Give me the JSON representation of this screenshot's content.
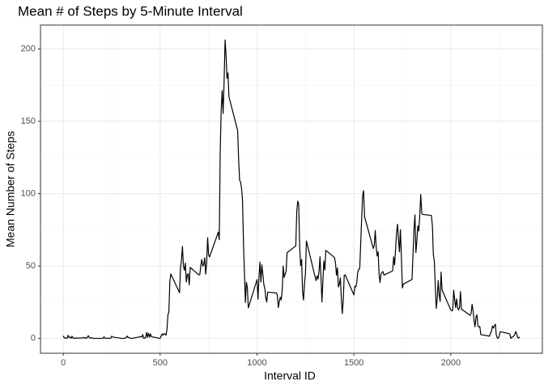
{
  "chart_data": {
    "type": "line",
    "title": "Mean # of Steps by 5-Minute Interval",
    "x_label": "Interval ID",
    "y_label": "Mean Number of Steps",
    "color": "#000000",
    "grid": true,
    "xlim": [
      -117.75,
      2472.75
    ],
    "ylim": [
      -10.3,
      216.5
    ],
    "xticks": [
      0,
      500,
      1000,
      1500,
      2000
    ],
    "yticks": [
      0,
      50,
      100,
      150,
      200
    ],
    "xminor_ticks": [
      250,
      750,
      1250,
      1750,
      2250
    ],
    "yminor_ticks": [
      25,
      75,
      125,
      175
    ],
    "x": [
      0,
      5,
      10,
      15,
      20,
      25,
      30,
      35,
      40,
      45,
      50,
      55,
      100,
      105,
      110,
      115,
      120,
      125,
      130,
      135,
      140,
      145,
      150,
      155,
      200,
      205,
      210,
      215,
      220,
      225,
      230,
      235,
      240,
      245,
      250,
      255,
      300,
      305,
      310,
      315,
      320,
      325,
      330,
      335,
      340,
      345,
      350,
      355,
      400,
      405,
      410,
      415,
      420,
      425,
      430,
      435,
      440,
      445,
      450,
      455,
      500,
      505,
      510,
      515,
      520,
      525,
      530,
      535,
      540,
      545,
      550,
      555,
      600,
      605,
      610,
      615,
      620,
      625,
      630,
      635,
      640,
      645,
      650,
      655,
      700,
      705,
      710,
      715,
      720,
      725,
      730,
      735,
      740,
      745,
      750,
      755,
      800,
      805,
      810,
      815,
      820,
      825,
      830,
      835,
      840,
      845,
      850,
      855,
      900,
      905,
      910,
      915,
      920,
      925,
      930,
      935,
      940,
      945,
      950,
      955,
      1000,
      1005,
      1010,
      1015,
      1020,
      1025,
      1030,
      1035,
      1040,
      1045,
      1050,
      1055,
      1100,
      1105,
      1110,
      1115,
      1120,
      1125,
      1130,
      1135,
      1140,
      1145,
      1150,
      1155,
      1200,
      1205,
      1210,
      1215,
      1220,
      1225,
      1230,
      1235,
      1240,
      1245,
      1250,
      1255,
      1300,
      1305,
      1310,
      1315,
      1320,
      1325,
      1330,
      1335,
      1340,
      1345,
      1350,
      1355,
      1400,
      1405,
      1410,
      1415,
      1420,
      1425,
      1430,
      1435,
      1440,
      1445,
      1450,
      1455,
      1500,
      1505,
      1510,
      1515,
      1520,
      1525,
      1530,
      1535,
      1540,
      1545,
      1550,
      1555,
      1600,
      1605,
      1610,
      1615,
      1620,
      1625,
      1630,
      1635,
      1640,
      1645,
      1650,
      1655,
      1700,
      1705,
      1710,
      1715,
      1720,
      1725,
      1730,
      1735,
      1740,
      1745,
      1750,
      1755,
      1800,
      1805,
      1810,
      1815,
      1820,
      1825,
      1830,
      1835,
      1840,
      1845,
      1850,
      1855,
      1900,
      1905,
      1910,
      1915,
      1920,
      1925,
      1930,
      1935,
      1940,
      1945,
      1950,
      1955,
      2000,
      2005,
      2010,
      2015,
      2020,
      2025,
      2030,
      2035,
      2040,
      2045,
      2050,
      2055,
      2100,
      2105,
      2110,
      2115,
      2120,
      2125,
      2130,
      2135,
      2140,
      2145,
      2150,
      2155,
      2200,
      2205,
      2210,
      2215,
      2220,
      2225,
      2230,
      2235,
      2240,
      2245,
      2250,
      2255,
      2300,
      2305,
      2310,
      2315,
      2320,
      2325,
      2330,
      2335,
      2340,
      2345,
      2350,
      2355
    ],
    "values": [
      1.7,
      0.3,
      0.1,
      0.2,
      0.1,
      2.1,
      0.5,
      0.9,
      0,
      1.5,
      0.3,
      0.1,
      0.3,
      0.7,
      0.2,
      0.3,
      0,
      1.1,
      1.8,
      0.2,
      0.2,
      0.4,
      0.3,
      0,
      0,
      0,
      1.1,
      0,
      0,
      0.1,
      0,
      0.2,
      0,
      0,
      1.5,
      0.9,
      0,
      0,
      0,
      0,
      0.2,
      0.6,
      1.6,
      0.6,
      0.5,
      0.1,
      0,
      0,
      1.2,
      0.9,
      2.6,
      0,
      0.3,
      0.4,
      4.1,
      0.7,
      3.5,
      0.8,
      3.1,
      1.1,
      0,
      1.6,
      3,
      2.2,
      3.3,
      3,
      2.1,
      6,
      16,
      18.3,
      39.5,
      44.5,
      31.5,
      49,
      53.8,
      63.5,
      50,
      47,
      52,
      39,
      44,
      44.6,
      37,
      49,
      43.8,
      44.4,
      50.5,
      54.5,
      49.9,
      50.9,
      55.7,
      44.3,
      52.3,
      69.5,
      57.8,
      56.2,
      73.4,
      68.2,
      129.4,
      157.5,
      171.2,
      155.4,
      177.3,
      206.2,
      195.9,
      179.6,
      183.4,
      167,
      143.5,
      124,
      109.1,
      108.1,
      103.7,
      95.9,
      66.2,
      45.2,
      24.8,
      38.8,
      35,
      21.1,
      40.6,
      27,
      42.4,
      52.7,
      38.9,
      50.8,
      44.3,
      37.4,
      34.7,
      28.3,
      25.1,
      31.9,
      31.4,
      29.7,
      21.3,
      25.5,
      28.4,
      26.5,
      33.4,
      50,
      42,
      44.6,
      46,
      59.2,
      63.9,
      87.7,
      94.8,
      92.8,
      63.4,
      50.2,
      54.5,
      32.4,
      26.5,
      37.7,
      45.1,
      67.3,
      42.3,
      39.9,
      43.3,
      41,
      46.2,
      56.4,
      42.8,
      25.1,
      39.9,
      53.5,
      47.3,
      60.8,
      55.8,
      52,
      43.6,
      48.7,
      35.5,
      37.5,
      41.8,
      27.5,
      17.1,
      26.1,
      43.6,
      43.8,
      30,
      36.1,
      35.5,
      38.8,
      46,
      47.8,
      48.1,
      65.3,
      82.9,
      98.7,
      102.1,
      84,
      62.1,
      64.1,
      74.5,
      63.2,
      56.9,
      59.8,
      43.9,
      38.6,
      44.7,
      45.5,
      46.2,
      43.7,
      46.6,
      56.3,
      50.7,
      61.2,
      72.7,
      78.9,
      68.9,
      59.7,
      75.1,
      56.5,
      34.8,
      37.5,
      40.7,
      58,
      74.7,
      85.3,
      59.3,
      67.8,
      77.7,
      74.2,
      85.3,
      99.5,
      86.6,
      85.6,
      84.9,
      77.8,
      58,
      53.4,
      36.3,
      20.7,
      27.4,
      40,
      30.2,
      25.5,
      45.7,
      33.5,
      19.6,
      19,
      19.3,
      33.3,
      26.8,
      21.2,
      27.3,
      21.3,
      19.5,
      21.3,
      32.3,
      20.2,
      15.9,
      17.2,
      23.5,
      19.2,
      12.5,
      8,
      14.7,
      16.3,
      8.7,
      7.8,
      8.1,
      2.6,
      1.5,
      3.7,
      4.8,
      8.5,
      7.1,
      8.7,
      9.8,
      2.2,
      0.3,
      0.1,
      1.6,
      4.6,
      3.3,
      2.8,
      0,
      0.8,
      1,
      1.6,
      2.6,
      4.7,
      3.3,
      0.6,
      0.2,
      1.1
    ]
  }
}
